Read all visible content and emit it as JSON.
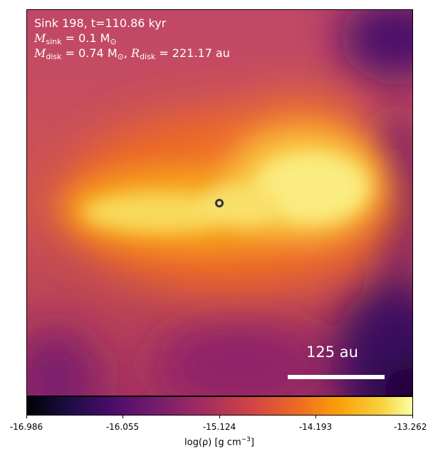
{
  "annotation": {
    "line1": "Sink 198, t=110.86 kyr",
    "msink_symbol": "M",
    "msink_sub": "sink",
    "msink_value": " = 0.1 M",
    "msink_sun_sub": "⊙",
    "mdisk_symbol": "M",
    "mdisk_sub": "disk",
    "mdisk_value": " = 0.74 M",
    "mdisk_sun_sub": "⊙",
    "rdisk_prefix": ", ",
    "rdisk_symbol": "R",
    "rdisk_sub": "disk",
    "rdisk_value": " = 221.17 au"
  },
  "scale_bar": {
    "label": "125 au"
  },
  "colorbar": {
    "colormap": "inferno",
    "ticks": [
      "-16.986",
      "-16.055",
      "-15.124",
      "-14.193",
      "-13.262"
    ],
    "label_main": "log(ρ) [g cm",
    "label_exp": "−3",
    "label_close": "]"
  },
  "colors": {
    "background_field": "#c04768",
    "sink_marker": "#333333",
    "text_overlay": "#ffffff"
  }
}
